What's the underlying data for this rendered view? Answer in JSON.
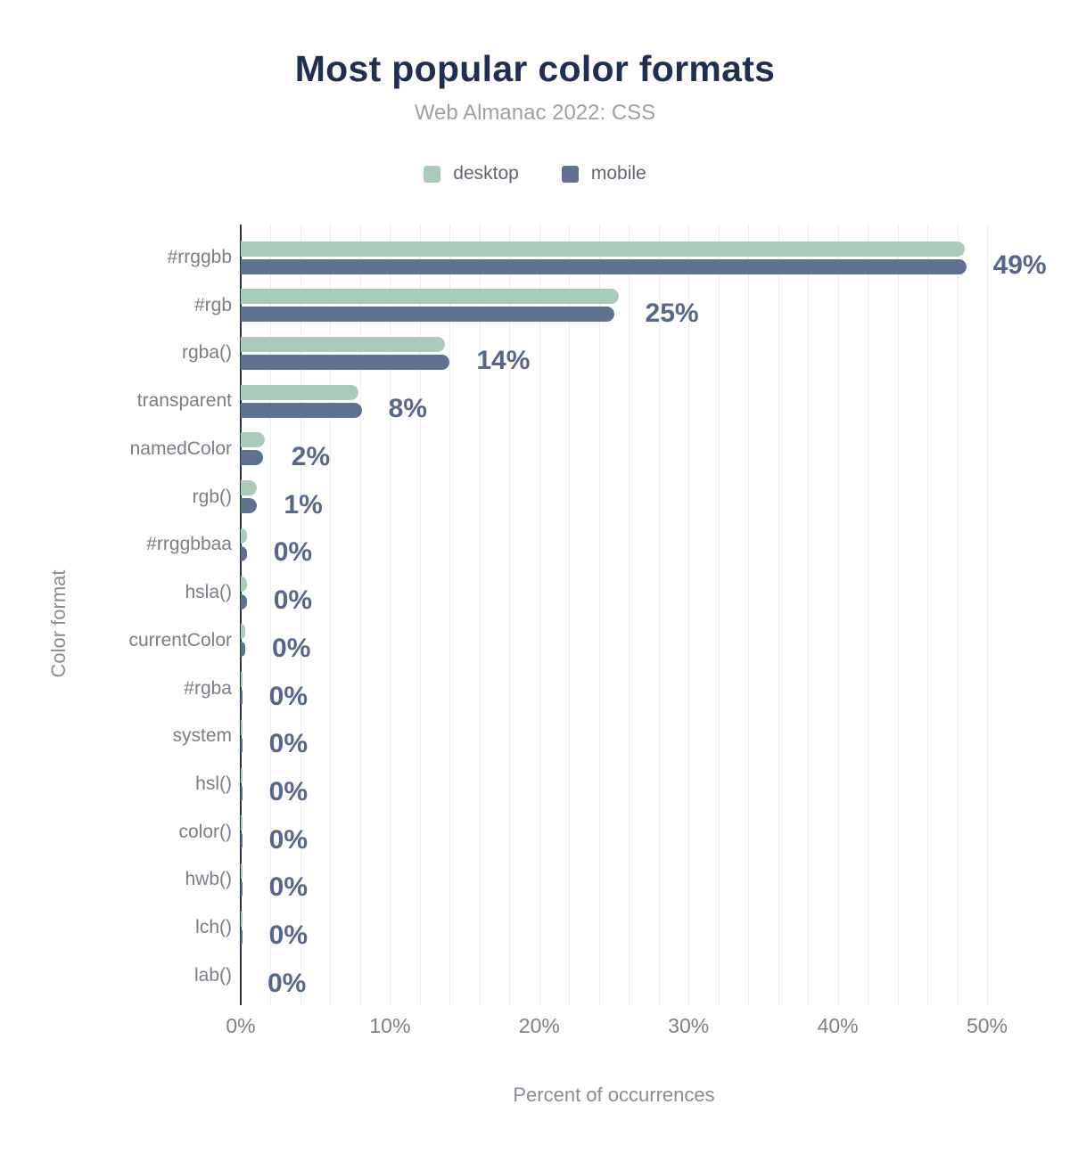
{
  "title": "Most popular color formats",
  "subtitle": "Web Almanac 2022: CSS",
  "legend": [
    {
      "name": "desktop",
      "color": "#a8ccb9"
    },
    {
      "name": "mobile",
      "color": "#5f7190"
    }
  ],
  "chart_data": {
    "type": "bar",
    "orientation": "horizontal",
    "title": "Most popular color formats",
    "subtitle": "Web Almanac 2022: CSS",
    "xlabel": "Percent of occurrences",
    "ylabel": "Color format",
    "xlim": [
      0,
      50
    ],
    "xticks": [
      {
        "value": 0,
        "label": "0%"
      },
      {
        "value": 10,
        "label": "10%"
      },
      {
        "value": 20,
        "label": "20%"
      },
      {
        "value": 30,
        "label": "30%"
      },
      {
        "value": 40,
        "label": "40%"
      },
      {
        "value": 50,
        "label": "50%"
      }
    ],
    "grid": "vertical-minor-every-2pct",
    "legend_position": "top",
    "categories": [
      "#rrggbb",
      "#rgb",
      "rgba()",
      "transparent",
      "namedColor",
      "rgb()",
      "#rrggbbaa",
      "hsla()",
      "currentColor",
      "#rgba",
      "system",
      "hsl()",
      "color()",
      "hwb()",
      "lch()",
      "lab()"
    ],
    "series": [
      {
        "name": "desktop",
        "color": "#a8ccb9",
        "values": [
          48.5,
          25.3,
          13.7,
          7.9,
          1.6,
          1.1,
          0.4,
          0.4,
          0.3,
          0.1,
          0.1,
          0.1,
          0.1,
          0.1,
          0.1,
          0.0
        ]
      },
      {
        "name": "mobile",
        "color": "#5f7190",
        "values": [
          48.6,
          25.0,
          14.0,
          8.1,
          1.5,
          1.1,
          0.4,
          0.4,
          0.3,
          0.1,
          0.1,
          0.1,
          0.1,
          0.1,
          0.1,
          0.0
        ]
      }
    ],
    "value_labels": [
      "49%",
      "25%",
      "14%",
      "8%",
      "2%",
      "1%",
      "0%",
      "0%",
      "0%",
      "0%",
      "0%",
      "0%",
      "0%",
      "0%",
      "0%",
      "0%"
    ],
    "value_label_color": "#55688c"
  }
}
